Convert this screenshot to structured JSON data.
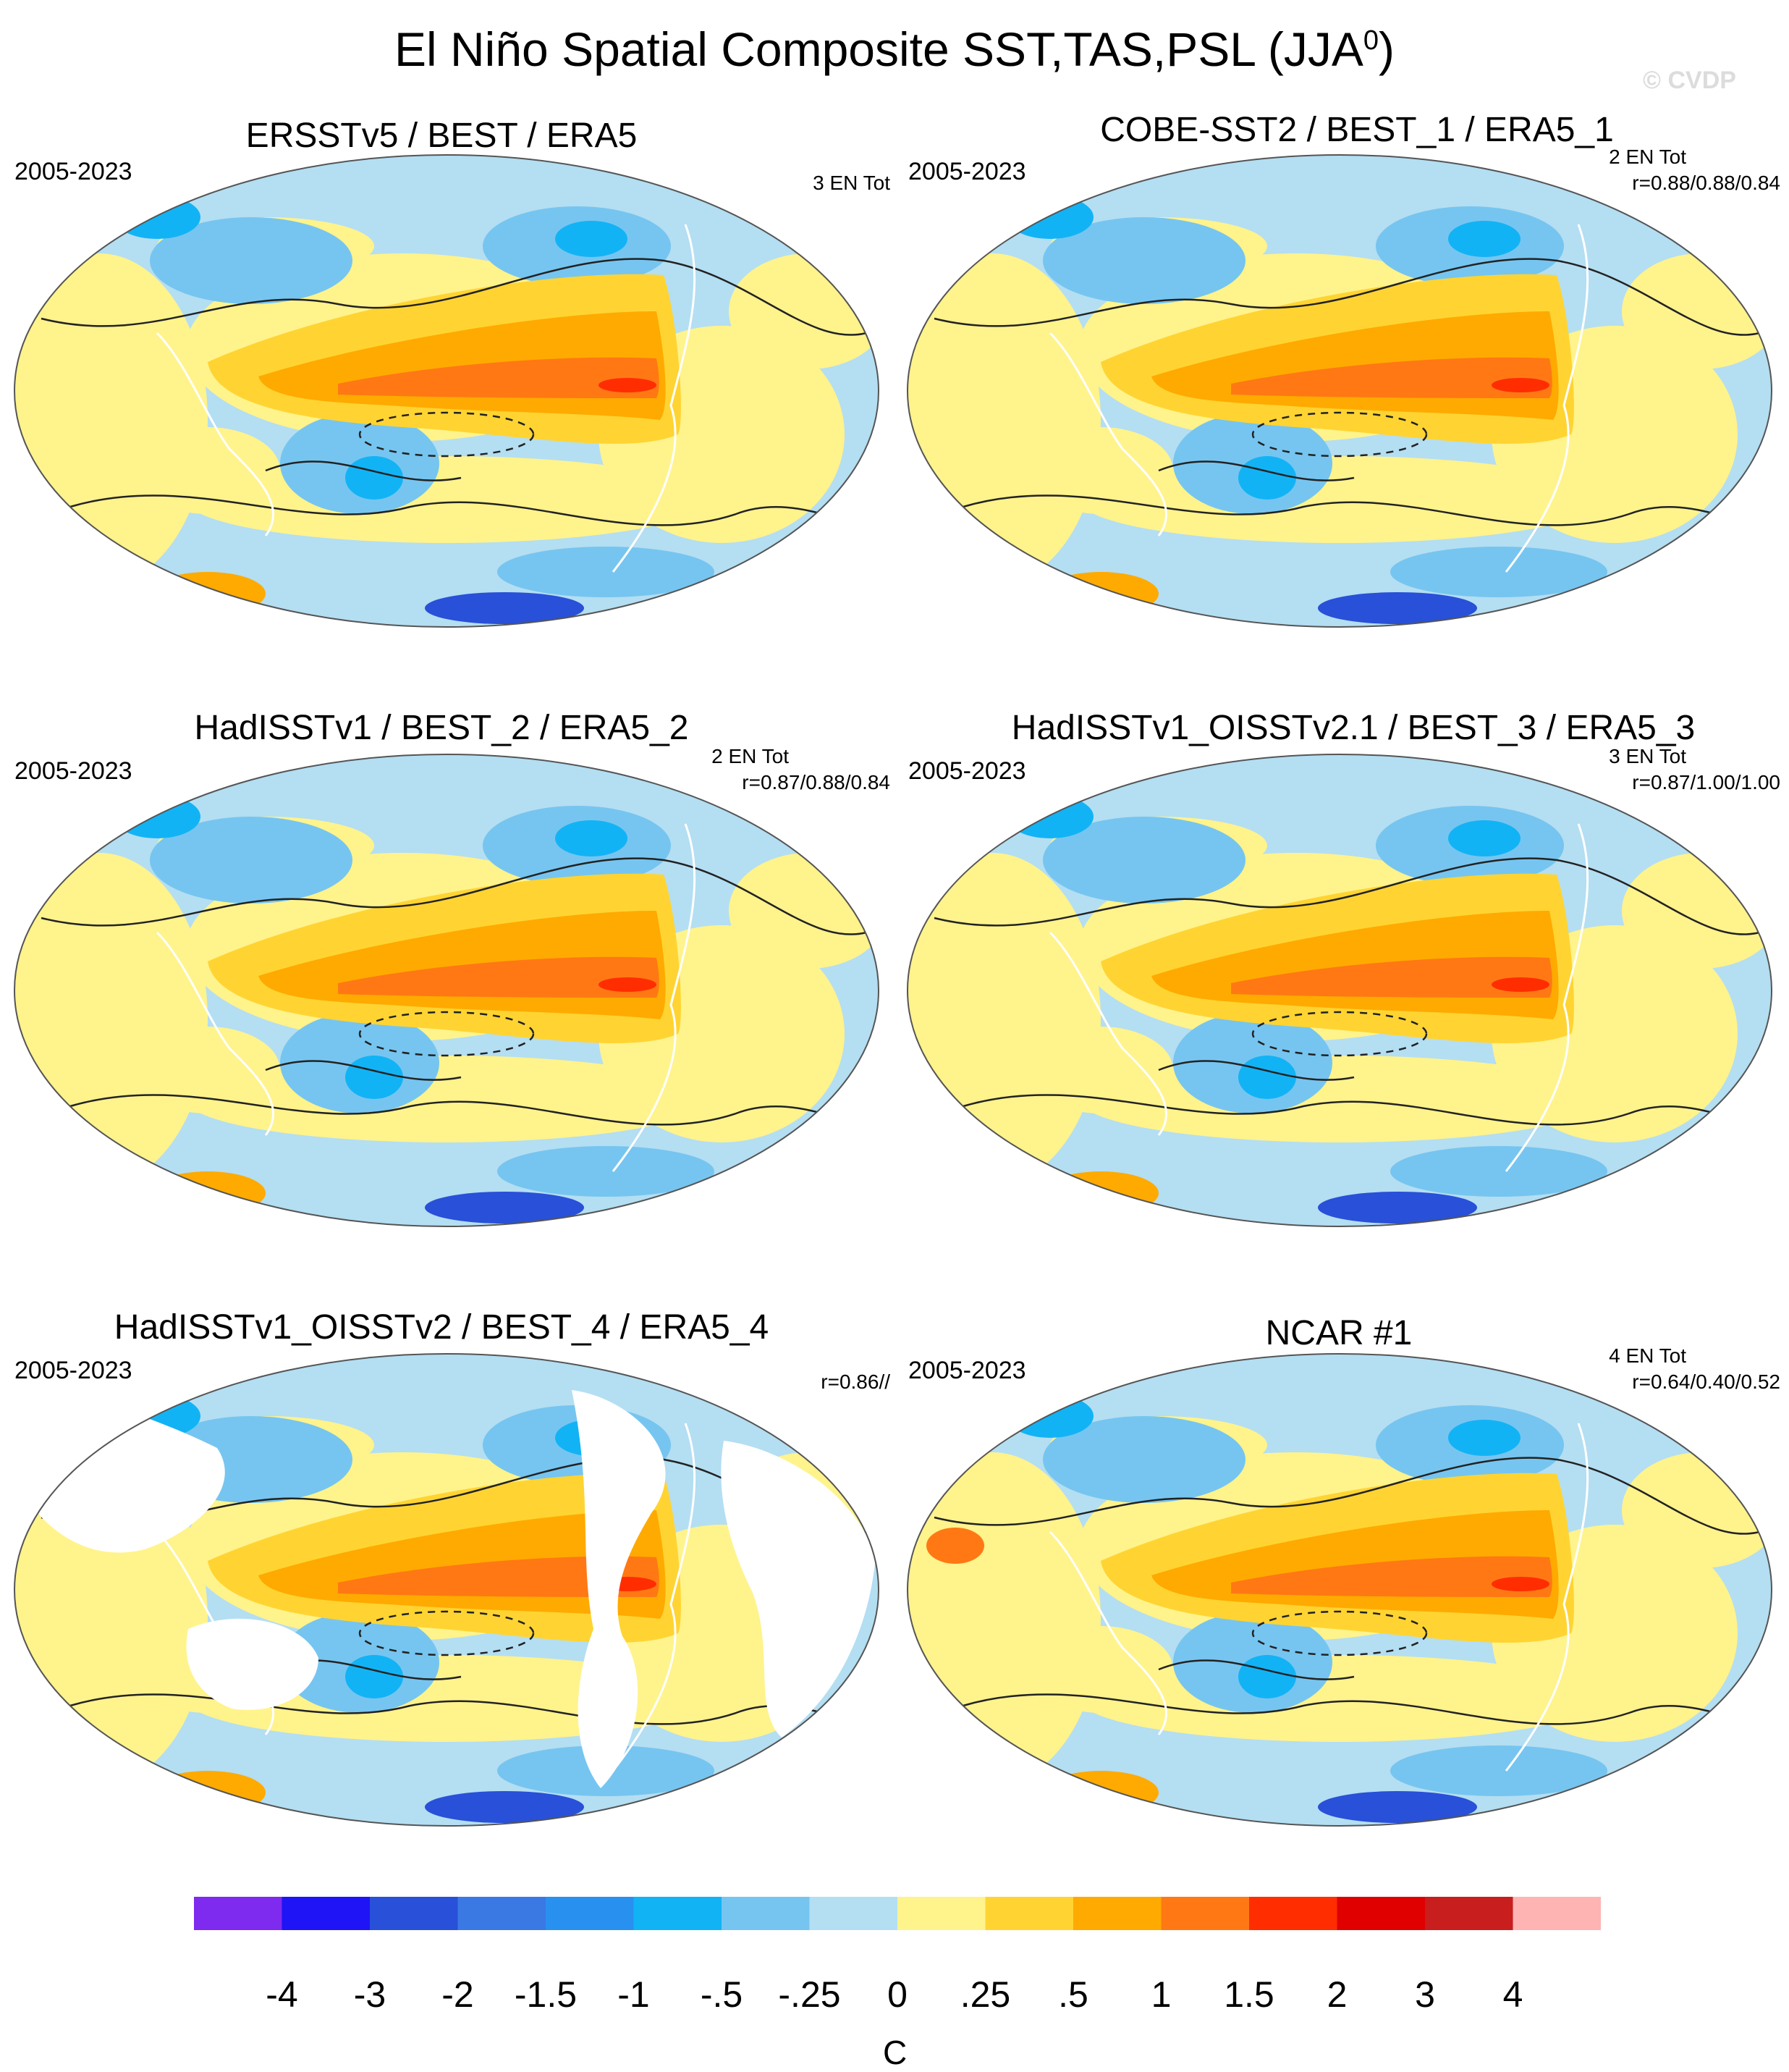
{
  "title": "El Niño Spatial Composite SST,TAS,PSL (JJA",
  "title_sup": "0",
  "title_close": ")",
  "watermark": "© CVDP",
  "panels": [
    {
      "title": "ERSSTv5 / BEST / ERA5",
      "period": "2005-2023",
      "stat1": "3 EN Tot",
      "stat2": ""
    },
    {
      "title": "COBE-SST2 / BEST_1 / ERA5_1",
      "period": "2005-2023",
      "stat1": "2 EN Tot",
      "stat2": "r=0.88/0.88/0.84"
    },
    {
      "title": "HadISSTv1 / BEST_2 / ERA5_2",
      "period": "2005-2023",
      "stat1": "2 EN Tot",
      "stat2": "r=0.87/0.88/0.84"
    },
    {
      "title": "HadISSTv1_OISSTv2.1 / BEST_3 / ERA5_3",
      "period": "2005-2023",
      "stat1": "3 EN Tot",
      "stat2": "r=0.87/1.00/1.00"
    },
    {
      "title": "HadISSTv1_OISSTv2 / BEST_4 / ERA5_4",
      "period": "2005-2023",
      "stat1": "",
      "stat2": "r=0.86//"
    },
    {
      "title": "NCAR #1",
      "period": "2005-2023",
      "stat1": "4 EN Tot",
      "stat2": "r=0.64/0.40/0.52"
    }
  ],
  "colorbar": {
    "units": "C",
    "labels": [
      "-4",
      "-3",
      "-2",
      "-1.5",
      "-1",
      "-.5",
      "-.25",
      "0",
      ".25",
      ".5",
      "1",
      "1.5",
      "2",
      "3",
      "4"
    ],
    "colors": [
      "#7f2aef",
      "#1e14f5",
      "#2850d8",
      "#3a78e4",
      "#2891f0",
      "#12b3f5",
      "#76c5f0",
      "#b4def2",
      "#fff38c",
      "#ffd432",
      "#ffaa00",
      "#ff7814",
      "#ff2d00",
      "#e00000",
      "#c81e1e",
      "#ffb4b4"
    ]
  }
}
